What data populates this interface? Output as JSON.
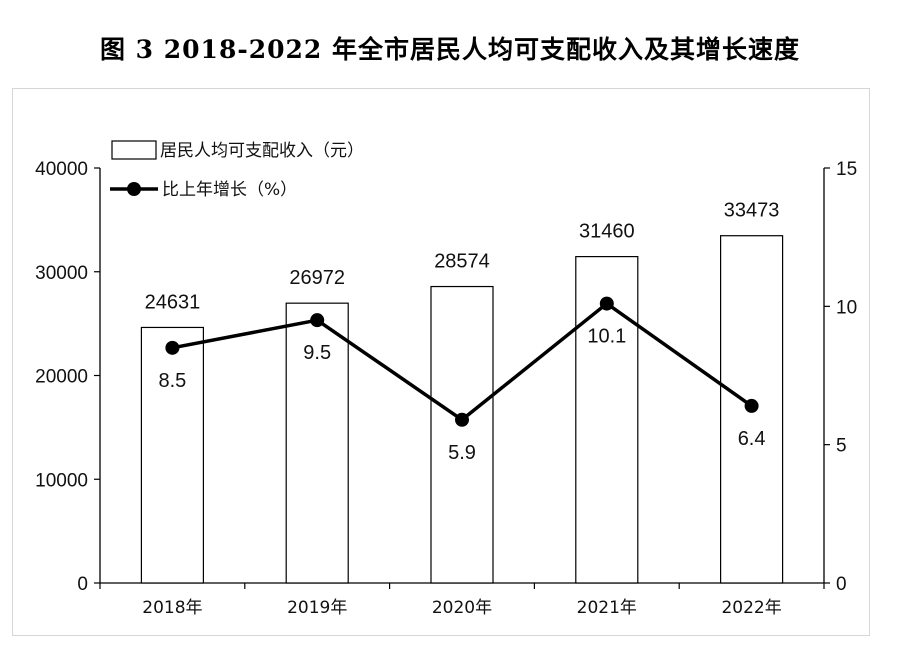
{
  "figure": {
    "title": "图 3    2018-2022 年全市居民人均可支配收入及其增长速度"
  },
  "chart_data": {
    "type": "bar+line",
    "title": "图 3    2018-2022 年全市居民人均可支配收入及其增长速度",
    "categories": [
      "2018年",
      "2019年",
      "2020年",
      "2021年",
      "2022年"
    ],
    "series": [
      {
        "name": "居民人均可支配收入（元）",
        "type": "bar",
        "axis": "left",
        "values": [
          24631,
          26972,
          28574,
          31460,
          33473
        ],
        "labels": [
          "24631",
          "26972",
          "28574",
          "31460",
          "33473"
        ]
      },
      {
        "name": "比上年增长（%）",
        "type": "line",
        "axis": "right",
        "values": [
          8.5,
          9.5,
          5.9,
          10.1,
          6.4
        ],
        "labels": [
          "8.5",
          "9.5",
          "5.9",
          "10.1",
          "6.4"
        ]
      }
    ],
    "y_left": {
      "min": 0,
      "max": 40000,
      "ticks": [
        "0",
        "10000",
        "20000",
        "30000",
        "40000"
      ]
    },
    "y_right": {
      "min": 0,
      "max": 15,
      "ticks": [
        "0",
        "5",
        "10",
        "15"
      ]
    },
    "legend": {
      "placement": "top-left"
    },
    "grid": false,
    "colors": {
      "bar_fill": "#ffffff",
      "bar_stroke": "#000000",
      "line": "#000000",
      "axis": "#000000"
    }
  }
}
